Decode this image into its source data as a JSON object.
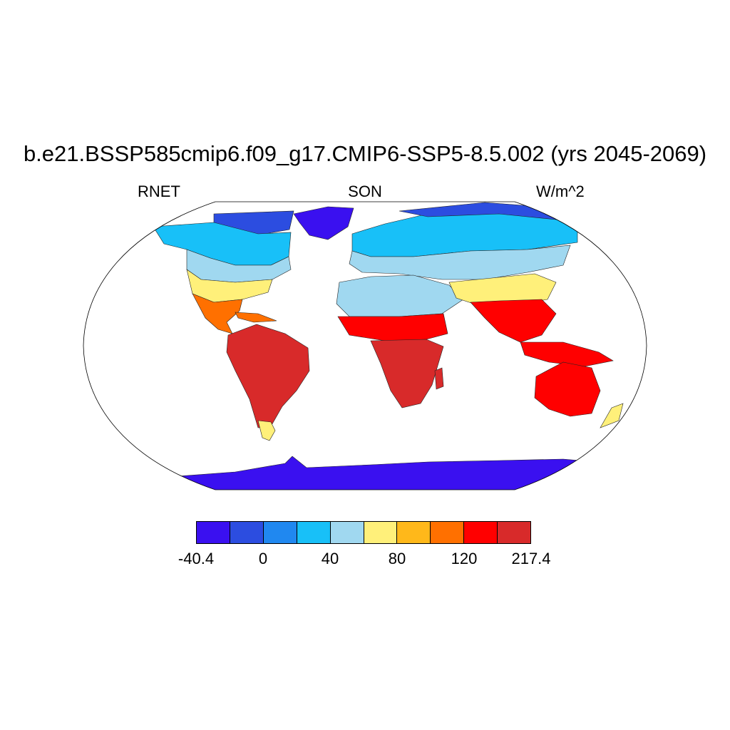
{
  "title": "b.e21.BSSP585cmip6.f09_g17.CMIP6-SSP5-8.5.002 (yrs 2045-2069)",
  "subtitle_left": "RNET",
  "subtitle_center": "SON",
  "subtitle_right": "W/m^2",
  "colorbar": {
    "colors": [
      "#3a10f0",
      "#2c4de0",
      "#2088f0",
      "#18c0f8",
      "#a0d8f0",
      "#fff07a",
      "#ffb81a",
      "#ff7000",
      "#ff0000",
      "#d82a2a"
    ],
    "labels": [
      "-40.4",
      "0",
      "40",
      "80",
      "120",
      "217.4"
    ]
  },
  "map": {
    "projection": "Robinson",
    "variable": "RNET",
    "season": "SON",
    "units": "W/m^2",
    "regions": [
      {
        "name": "Greenland",
        "band": 0
      },
      {
        "name": "Antarctica",
        "band": 0
      },
      {
        "name": "Arctic Canada",
        "band": 1
      },
      {
        "name": "Northern Siberia",
        "band": 1
      },
      {
        "name": "Canada",
        "band": 3
      },
      {
        "name": "Northern Eurasia",
        "band": 3
      },
      {
        "name": "Central Asia",
        "band": 4
      },
      {
        "name": "Sahara",
        "band": 4
      },
      {
        "name": "Southern USA",
        "band": 5
      },
      {
        "name": "Central America",
        "band": 7
      },
      {
        "name": "Sahel",
        "band": 8
      },
      {
        "name": "India",
        "band": 8
      },
      {
        "name": "Amazon",
        "band": 9
      },
      {
        "name": "Central Africa",
        "band": 9
      },
      {
        "name": "Australia",
        "band": 8
      },
      {
        "name": "Patagonia",
        "band": 5
      }
    ]
  }
}
